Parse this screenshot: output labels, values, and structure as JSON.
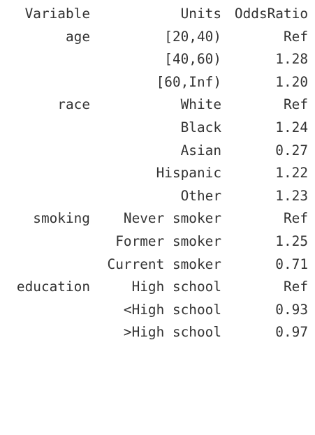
{
  "table": {
    "headers": {
      "variable": "Variable",
      "units": "Units",
      "odds_ratio": "OddsRatio"
    },
    "rows": [
      {
        "variable": "age",
        "units": "[20,40)",
        "odds_ratio": "Ref"
      },
      {
        "variable": "",
        "units": "[40,60)",
        "odds_ratio": "1.28"
      },
      {
        "variable": "",
        "units": "[60,Inf)",
        "odds_ratio": "1.20"
      },
      {
        "variable": "race",
        "units": "White",
        "odds_ratio": "Ref"
      },
      {
        "variable": "",
        "units": "Black",
        "odds_ratio": "1.24"
      },
      {
        "variable": "",
        "units": "Asian",
        "odds_ratio": "0.27"
      },
      {
        "variable": "",
        "units": "Hispanic",
        "odds_ratio": "1.22"
      },
      {
        "variable": "",
        "units": "Other",
        "odds_ratio": "1.23"
      },
      {
        "variable": "smoking",
        "units": "Never smoker",
        "odds_ratio": "Ref"
      },
      {
        "variable": "",
        "units": "Former smoker",
        "odds_ratio": "1.25"
      },
      {
        "variable": "",
        "units": "Current smoker",
        "odds_ratio": "0.71"
      },
      {
        "variable": "education",
        "units": "High school",
        "odds_ratio": "Ref"
      },
      {
        "variable": "",
        "units": "<High school",
        "odds_ratio": "0.93"
      },
      {
        "variable": "",
        "units": ">High school",
        "odds_ratio": "0.97"
      }
    ]
  }
}
